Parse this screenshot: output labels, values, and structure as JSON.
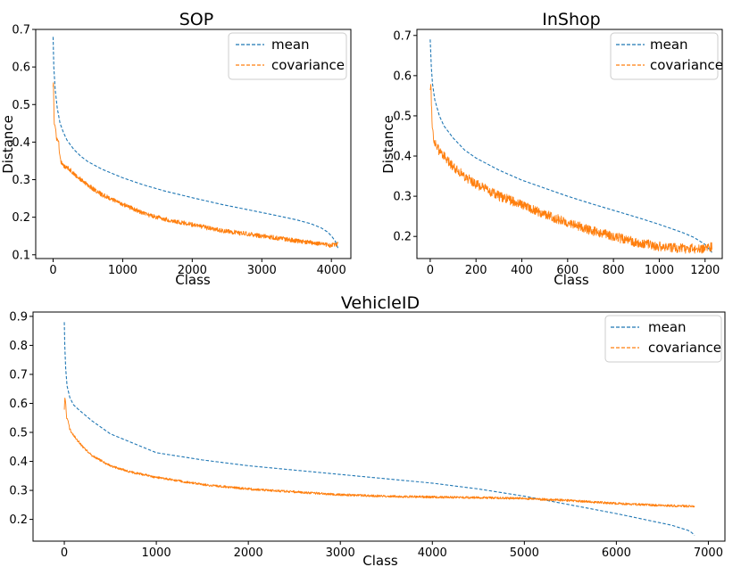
{
  "chart_data": [
    {
      "id": "sop",
      "type": "line",
      "title": "SOP",
      "xlabel": "Class",
      "ylabel": "Distance",
      "xlim": [
        -250,
        4280
      ],
      "ylim": [
        0.09,
        0.7
      ],
      "xticks": [
        0,
        1000,
        2000,
        3000,
        4000
      ],
      "yticks": [
        0.1,
        0.2,
        0.3,
        0.4,
        0.5,
        0.6,
        0.7
      ],
      "legend_position": "upper right",
      "series": [
        {
          "name": "mean",
          "color": "#1f77b4",
          "style": "dashed",
          "noise": 0,
          "x": [
            0,
            10,
            30,
            60,
            100,
            150,
            200,
            300,
            400,
            500,
            700,
            1000,
            1300,
            1600,
            2000,
            2400,
            2800,
            3200,
            3500,
            3700,
            3850,
            3950,
            4010,
            4060,
            4100
          ],
          "y": [
            0.68,
            0.6,
            0.54,
            0.49,
            0.45,
            0.425,
            0.405,
            0.38,
            0.362,
            0.348,
            0.328,
            0.305,
            0.286,
            0.27,
            0.252,
            0.235,
            0.22,
            0.205,
            0.193,
            0.183,
            0.172,
            0.16,
            0.148,
            0.135,
            0.115
          ]
        },
        {
          "name": "covariance",
          "color": "#ff7f0e",
          "style": "dashed",
          "noise": 0.006,
          "x": [
            0,
            5,
            15,
            30,
            50,
            80,
            100,
            130,
            160,
            200,
            300,
            500,
            700,
            1000,
            1300,
            1600,
            2000,
            2400,
            2800,
            3200,
            3600,
            4000,
            4100
          ],
          "y": [
            0.55,
            0.56,
            0.45,
            0.44,
            0.41,
            0.4,
            0.355,
            0.34,
            0.335,
            0.335,
            0.315,
            0.285,
            0.26,
            0.235,
            0.21,
            0.195,
            0.18,
            0.165,
            0.155,
            0.145,
            0.135,
            0.125,
            0.13
          ]
        }
      ]
    },
    {
      "id": "inshop",
      "type": "line",
      "title": "InShop",
      "xlabel": "Class",
      "ylabel": "Distance",
      "xlim": [
        -58,
        1275
      ],
      "ylim": [
        0.145,
        0.715
      ],
      "xticks": [
        0,
        200,
        400,
        600,
        800,
        1000,
        1200
      ],
      "yticks": [
        0.2,
        0.3,
        0.4,
        0.5,
        0.6,
        0.7
      ],
      "legend_position": "upper right",
      "series": [
        {
          "name": "mean",
          "color": "#1f77b4",
          "style": "dashed",
          "noise": 0,
          "x": [
            0,
            5,
            10,
            20,
            40,
            60,
            100,
            150,
            200,
            300,
            400,
            500,
            600,
            700,
            800,
            900,
            1000,
            1100,
            1150,
            1200,
            1230
          ],
          "y": [
            0.69,
            0.62,
            0.58,
            0.54,
            0.5,
            0.475,
            0.445,
            0.415,
            0.395,
            0.365,
            0.34,
            0.32,
            0.3,
            0.282,
            0.265,
            0.248,
            0.23,
            0.21,
            0.198,
            0.18,
            0.16
          ]
        },
        {
          "name": "covariance",
          "color": "#ff7f0e",
          "style": "dashed",
          "noise": 0.012,
          "x": [
            0,
            3,
            6,
            10,
            15,
            25,
            40,
            50,
            70,
            100,
            150,
            200,
            300,
            400,
            500,
            600,
            700,
            800,
            900,
            1000,
            1100,
            1200,
            1230
          ],
          "y": [
            0.57,
            0.58,
            0.52,
            0.47,
            0.44,
            0.43,
            0.41,
            0.41,
            0.39,
            0.375,
            0.35,
            0.33,
            0.3,
            0.28,
            0.255,
            0.235,
            0.215,
            0.2,
            0.185,
            0.175,
            0.17,
            0.17,
            0.175
          ]
        }
      ]
    },
    {
      "id": "vehicleid",
      "type": "line",
      "title": "VehicleID",
      "xlabel": "Class",
      "ylabel": "",
      "xlim": [
        -340,
        7180
      ],
      "ylim": [
        0.125,
        0.915
      ],
      "xticks": [
        0,
        1000,
        2000,
        3000,
        4000,
        5000,
        6000,
        7000
      ],
      "yticks": [
        0.2,
        0.3,
        0.4,
        0.5,
        0.6,
        0.7,
        0.8,
        0.9
      ],
      "legend_position": "upper right",
      "series": [
        {
          "name": "mean",
          "color": "#1f77b4",
          "style": "dashed",
          "noise": 0,
          "x": [
            0,
            5,
            15,
            30,
            60,
            100,
            150,
            300,
            500,
            1000,
            1500,
            2000,
            2500,
            3000,
            3500,
            4000,
            4500,
            5000,
            5500,
            6000,
            6300,
            6600,
            6800,
            6850
          ],
          "y": [
            0.88,
            0.8,
            0.72,
            0.66,
            0.62,
            0.595,
            0.58,
            0.54,
            0.495,
            0.43,
            0.405,
            0.385,
            0.37,
            0.355,
            0.34,
            0.325,
            0.305,
            0.28,
            0.25,
            0.22,
            0.2,
            0.18,
            0.16,
            0.145
          ]
        },
        {
          "name": "covariance",
          "color": "#ff7f0e",
          "style": "dashed",
          "noise": 0.004,
          "x": [
            0,
            5,
            15,
            25,
            40,
            60,
            100,
            150,
            200,
            300,
            500,
            700,
            1000,
            1500,
            2000,
            2500,
            3000,
            3500,
            4000,
            4500,
            5000,
            5500,
            6000,
            6500,
            6850
          ],
          "y": [
            0.58,
            0.62,
            0.6,
            0.55,
            0.54,
            0.51,
            0.49,
            0.47,
            0.45,
            0.42,
            0.385,
            0.365,
            0.345,
            0.32,
            0.305,
            0.295,
            0.285,
            0.28,
            0.277,
            0.275,
            0.272,
            0.265,
            0.255,
            0.248,
            0.245
          ]
        }
      ]
    }
  ]
}
